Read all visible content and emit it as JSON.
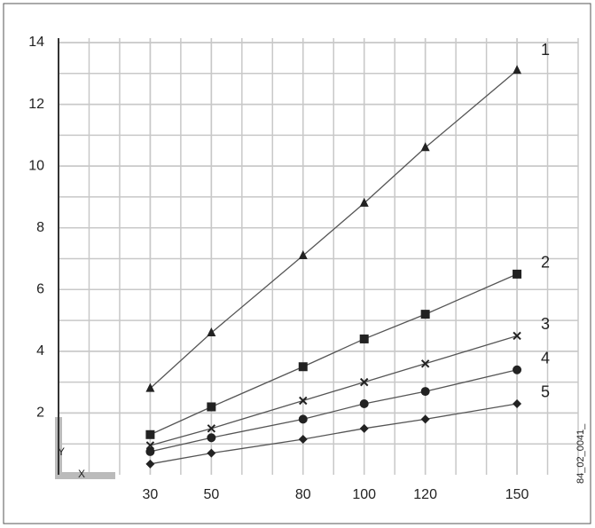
{
  "chart_data": {
    "type": "line",
    "x": [
      30,
      50,
      80,
      100,
      120,
      150
    ],
    "series": [
      {
        "name": "1",
        "color": "#222222",
        "marker": "triangle",
        "values": [
          2.8,
          4.6,
          7.1,
          8.8,
          10.6,
          13.1
        ]
      },
      {
        "name": "2",
        "color": "#222222",
        "marker": "square",
        "values": [
          1.3,
          2.2,
          3.5,
          4.4,
          5.2,
          6.5
        ]
      },
      {
        "name": "3",
        "color": "#222222",
        "marker": "x",
        "values": [
          0.95,
          1.5,
          2.4,
          3.0,
          3.6,
          4.5
        ]
      },
      {
        "name": "4",
        "color": "#222222",
        "marker": "circle",
        "values": [
          0.75,
          1.2,
          1.8,
          2.3,
          2.7,
          3.4
        ]
      },
      {
        "name": "5",
        "color": "#222222",
        "marker": "diamond",
        "values": [
          0.35,
          0.7,
          1.15,
          1.5,
          1.8,
          2.3
        ]
      }
    ],
    "xlim": [
      0,
      170
    ],
    "ylim": [
      0,
      14
    ],
    "xticks": [
      30,
      50,
      80,
      100,
      120,
      150
    ],
    "yticks": [
      2,
      4,
      6,
      8,
      10,
      12,
      14
    ],
    "grid": true,
    "grid_step": [
      10,
      1
    ],
    "axis_icon": {
      "y": "Y",
      "x": "X"
    },
    "image_id": "84_02_0041_"
  }
}
